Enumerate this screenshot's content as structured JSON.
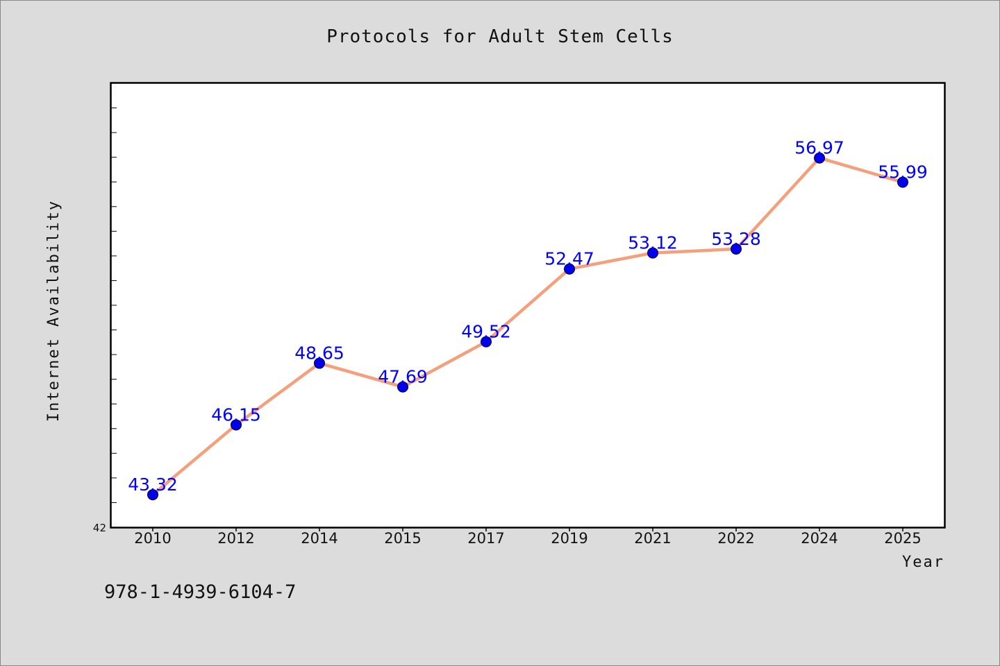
{
  "chart_data": {
    "type": "line",
    "title": "Protocols for Adult Stem Cells",
    "xlabel": "Year",
    "ylabel": "Internet Availability",
    "categories": [
      "2010",
      "2012",
      "2014",
      "2015",
      "2017",
      "2019",
      "2021",
      "2022",
      "2024",
      "2025"
    ],
    "series": [
      {
        "values": [
          43.32,
          46.15,
          48.65,
          47.69,
          49.52,
          52.47,
          53.12,
          53.28,
          56.97,
          55.99
        ],
        "labels": [
          "43.32",
          "46.15",
          "48.65",
          "47.69",
          "49.52",
          "52.47",
          "53.12",
          "53.28",
          "56.97",
          "55.99"
        ]
      }
    ],
    "ylim": [
      42,
      60
    ],
    "y_tick_label": "42",
    "grid": false,
    "legend": "none",
    "line_color": "#f4a07c",
    "marker_color": "#0000ee",
    "label_color": "#0000ff",
    "background_color": "#dcdcdc",
    "plot_background": "#ffffff"
  },
  "footnote": "978-1-4939-6104-7"
}
